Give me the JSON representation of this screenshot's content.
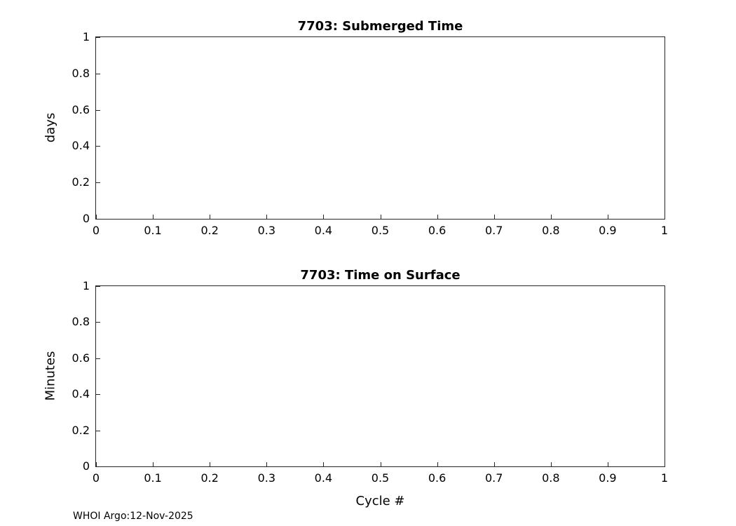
{
  "colors": {
    "background": "#ffffff",
    "axis": "#262626",
    "text": "#000000"
  },
  "annotations": {
    "footer": "WHOI Argo:12-Nov-2025"
  },
  "chart_data": [
    {
      "type": "line",
      "title": "7703: Submerged Time",
      "xlabel": "",
      "ylabel": "days",
      "xlim": [
        0,
        1
      ],
      "ylim": [
        0,
        1
      ],
      "xticks": [
        0,
        0.1,
        0.2,
        0.3,
        0.4,
        0.5,
        0.6,
        0.7,
        0.8,
        0.9,
        1
      ],
      "xtick_labels": [
        "0",
        "0.1",
        "0.2",
        "0.3",
        "0.4",
        "0.5",
        "0.6",
        "0.7",
        "0.8",
        "0.9",
        "1"
      ],
      "yticks": [
        0,
        0.2,
        0.4,
        0.6,
        0.8,
        1
      ],
      "ytick_labels": [
        "0",
        "0.2",
        "0.4",
        "0.6",
        "0.8",
        "1"
      ],
      "grid": false,
      "legend": "none",
      "series": []
    },
    {
      "type": "line",
      "title": "7703: Time on Surface",
      "xlabel": "Cycle #",
      "ylabel": "Minutes",
      "xlim": [
        0,
        1
      ],
      "ylim": [
        0,
        1
      ],
      "xticks": [
        0,
        0.1,
        0.2,
        0.3,
        0.4,
        0.5,
        0.6,
        0.7,
        0.8,
        0.9,
        1
      ],
      "xtick_labels": [
        "0",
        "0.1",
        "0.2",
        "0.3",
        "0.4",
        "0.5",
        "0.6",
        "0.7",
        "0.8",
        "0.9",
        "1"
      ],
      "yticks": [
        0,
        0.2,
        0.4,
        0.6,
        0.8,
        1
      ],
      "ytick_labels": [
        "0",
        "0.2",
        "0.4",
        "0.6",
        "0.8",
        "1"
      ],
      "grid": false,
      "legend": "none",
      "series": []
    }
  ]
}
